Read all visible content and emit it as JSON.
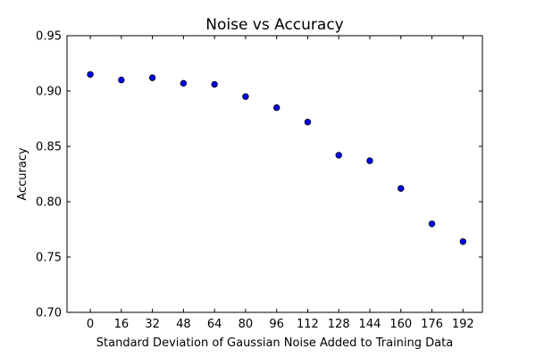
{
  "chart_data": {
    "type": "scatter",
    "title": "Noise vs Accuracy",
    "xlabel": "Standard Deviation of Gaussian Noise Added to Training Data",
    "ylabel": "Accuracy",
    "xlim": [
      -12,
      202
    ],
    "ylim": [
      0.7,
      0.95
    ],
    "xticks": [
      0,
      16,
      32,
      48,
      64,
      80,
      96,
      112,
      128,
      144,
      160,
      176,
      192
    ],
    "yticks": [
      "0.70",
      "0.75",
      "0.80",
      "0.85",
      "0.90",
      "0.95"
    ],
    "grid": false,
    "series": [
      {
        "x": [
          0,
          16,
          32,
          48,
          64,
          80,
          96,
          112,
          128,
          144,
          160,
          176,
          192
        ],
        "y": [
          0.915,
          0.91,
          0.912,
          0.907,
          0.906,
          0.895,
          0.885,
          0.872,
          0.842,
          0.837,
          0.812,
          0.78,
          0.764
        ],
        "color": "#0000ff"
      }
    ]
  }
}
